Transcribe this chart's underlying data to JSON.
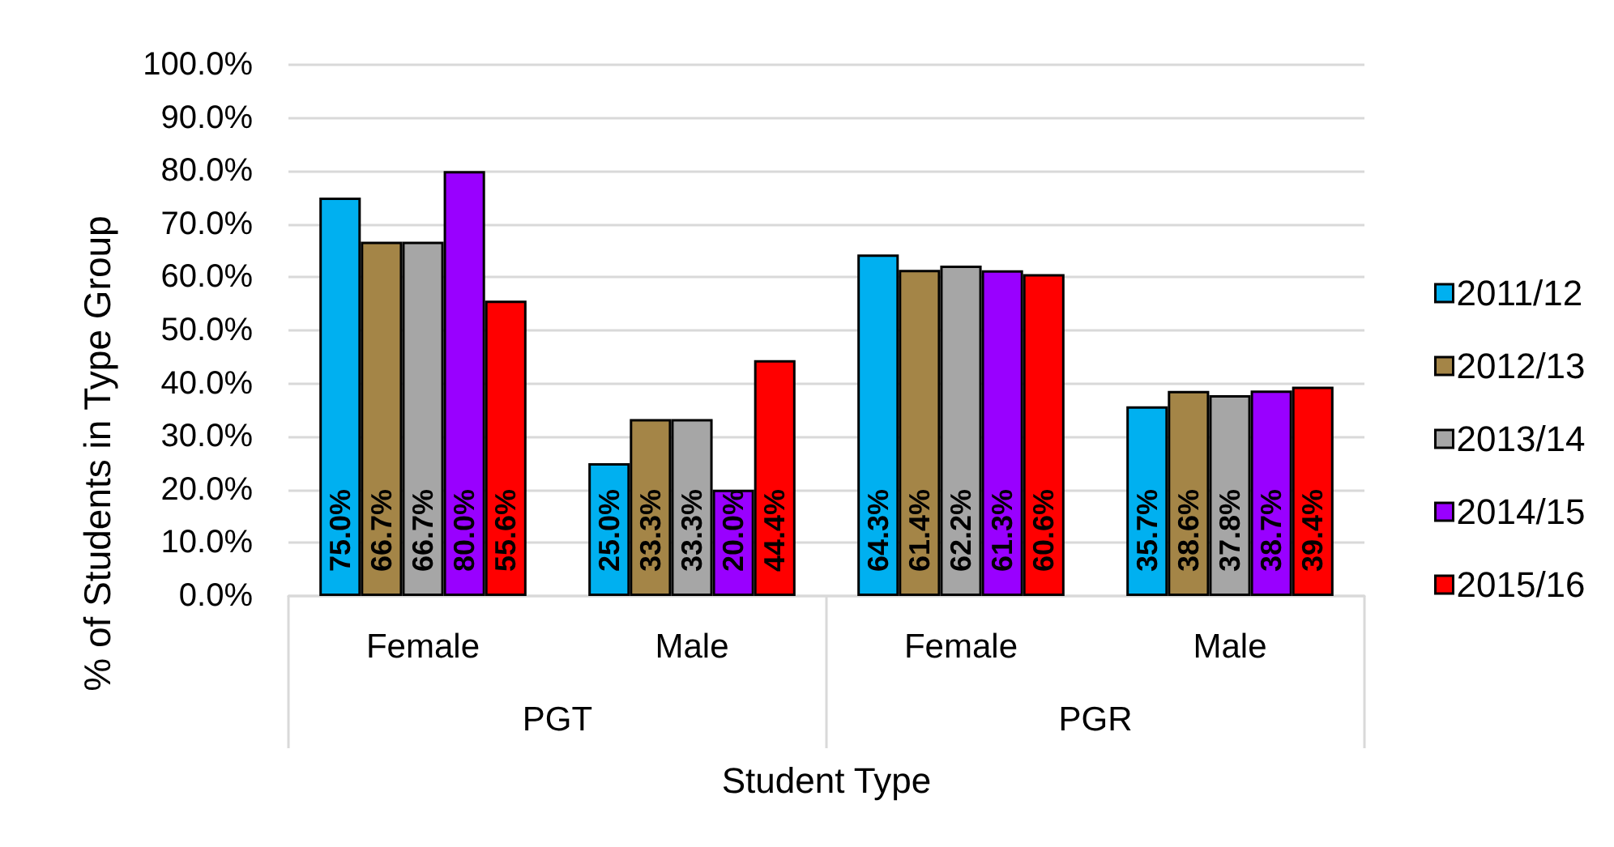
{
  "chart_data": {
    "type": "bar",
    "xlabel": "Student Type",
    "ylabel": "% of Students in Type Group",
    "categories": [
      "Female",
      "Male",
      "Female",
      "Male"
    ],
    "annotations": [
      "PGT",
      "PGR"
    ],
    "series": [
      {
        "name": "2011/12",
        "color": "#00b0f0",
        "values": [
          75.0,
          25.0,
          64.3,
          35.7
        ],
        "value_labels": [
          "75.0%",
          "25.0%",
          "64.3%",
          "35.7%"
        ]
      },
      {
        "name": "2012/13",
        "color": "#a48547",
        "values": [
          66.7,
          33.3,
          61.4,
          38.6
        ],
        "value_labels": [
          "66.7%",
          "33.3%",
          "61.4%",
          "38.6%"
        ]
      },
      {
        "name": "2013/14",
        "color": "#a6a6a6",
        "values": [
          66.7,
          33.3,
          62.2,
          37.8
        ],
        "value_labels": [
          "66.7%",
          "33.3%",
          "62.2%",
          "37.8%"
        ]
      },
      {
        "name": "2014/15",
        "color": "#9900ff",
        "values": [
          80.0,
          20.0,
          61.3,
          38.7
        ],
        "value_labels": [
          "80.0%",
          "20.0%",
          "61.3%",
          "38.7%"
        ]
      },
      {
        "name": "2015/16",
        "color": "#ff0000",
        "values": [
          55.6,
          44.4,
          60.6,
          39.4
        ],
        "value_labels": [
          "55.6%",
          "44.4%",
          "60.6%",
          "39.4%"
        ]
      }
    ],
    "ylim": [
      0,
      100
    ],
    "yticks": [
      {
        "value": 0,
        "label": "0.0%"
      },
      {
        "value": 10,
        "label": "10.0%"
      },
      {
        "value": 20,
        "label": "20.0%"
      },
      {
        "value": 30,
        "label": "30.0%"
      },
      {
        "value": 40,
        "label": "40.0%"
      },
      {
        "value": 50,
        "label": "50.0%"
      },
      {
        "value": 60,
        "label": "60.0%"
      },
      {
        "value": 70,
        "label": "70.0%"
      },
      {
        "value": 80,
        "label": "80.0%"
      },
      {
        "value": 90,
        "label": "90.0%"
      },
      {
        "value": 100,
        "label": "100.0%"
      }
    ],
    "grid": "y",
    "legend": "right"
  }
}
